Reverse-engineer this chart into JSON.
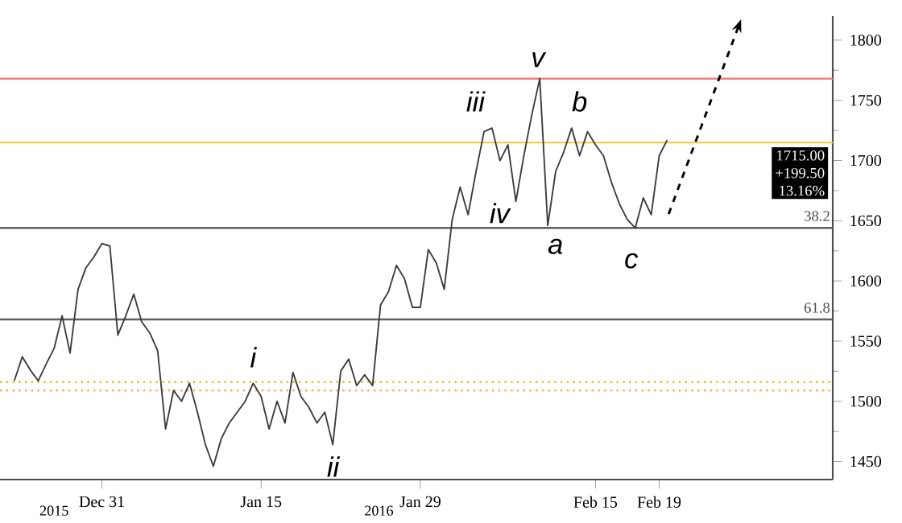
{
  "chart_data": {
    "type": "line",
    "categories": [
      null,
      null,
      null,
      null,
      null,
      null,
      null,
      null,
      null,
      null,
      null,
      null,
      "Dec 31",
      null,
      null,
      null,
      null,
      null,
      null,
      null,
      null,
      null,
      null,
      null,
      null,
      null,
      null,
      null,
      null,
      null,
      null,
      null,
      "Jan 15",
      null,
      null,
      null,
      null,
      null,
      null,
      null,
      null,
      null,
      null,
      null,
      null,
      null,
      null,
      null,
      null,
      null,
      null,
      null,
      "Jan 29",
      null,
      null,
      null,
      null,
      null,
      null,
      null,
      null,
      null,
      null,
      null,
      null,
      null,
      null,
      null,
      null,
      null,
      null,
      null,
      null,
      null,
      "Feb 15",
      null,
      null,
      null,
      null,
      null,
      null,
      null,
      "Feb 19",
      null,
      null,
      null,
      null,
      null,
      null,
      null,
      null,
      null,
      null,
      null,
      null,
      null,
      null,
      null,
      null,
      null,
      null,
      null,
      null,
      null
    ],
    "series": [
      {
        "color": "#3c3c3c",
        "values": [
          null,
          1517,
          1537,
          1526,
          1517,
          1531,
          1544,
          1571,
          1540,
          1593,
          1611,
          1620,
          1631,
          1629,
          1555,
          1571,
          1589,
          1566,
          1557,
          1542,
          1477,
          1509,
          1500,
          1515,
          1491,
          1464,
          1446,
          1469,
          1482,
          1491,
          1500,
          1515,
          1504,
          1477,
          1500,
          1482,
          1524,
          1504,
          1495,
          1482,
          1491,
          1464,
          1525,
          1535,
          1513,
          1522,
          1513,
          1580,
          1591,
          1613,
          1602,
          1578,
          1578,
          1626,
          1615,
          1593,
          1651,
          1678,
          1655,
          1691,
          1724,
          1727,
          1700,
          1713,
          1666,
          1704,
          1738,
          1768,
          1646,
          1691,
          1707,
          1727,
          1704,
          1724,
          1713,
          1704,
          1682,
          1664,
          1651,
          1644,
          1669,
          1655,
          1704,
          1717,
          null,
          null,
          null,
          null,
          null,
          null,
          null,
          null,
          null,
          null,
          null,
          null,
          null,
          null,
          null,
          null,
          null,
          null,
          null,
          null
        ]
      }
    ],
    "ylim": [
      1435,
      1820
    ],
    "yticks": [
      1450,
      1500,
      1550,
      1600,
      1650,
      1700,
      1750,
      1800
    ],
    "grid": false,
    "marker": "none",
    "line_style": "solid",
    "ref_lines": [
      {
        "axis": "y",
        "value": 1768,
        "color": "#f08080"
      },
      {
        "axis": "y",
        "value": 1715,
        "color": "#f0d050",
        "label": "1715.00"
      },
      {
        "axis": "y",
        "value": 1644,
        "color": "#606060"
      },
      {
        "axis": "y",
        "value": 1568,
        "color": "#606060"
      },
      {
        "axis": "y",
        "value": 1516,
        "color": "#e8c030",
        "line_style": "dotted"
      },
      {
        "axis": "y",
        "value": 1509,
        "color": "#f0b060",
        "line_style": "dotted"
      }
    ],
    "annotations": [
      "i",
      "ii",
      "iii",
      "iv",
      "v",
      "a",
      "b",
      "c",
      "2015",
      "2016",
      "+199.50",
      "13.16%",
      "38.2",
      "61.8"
    ]
  }
}
